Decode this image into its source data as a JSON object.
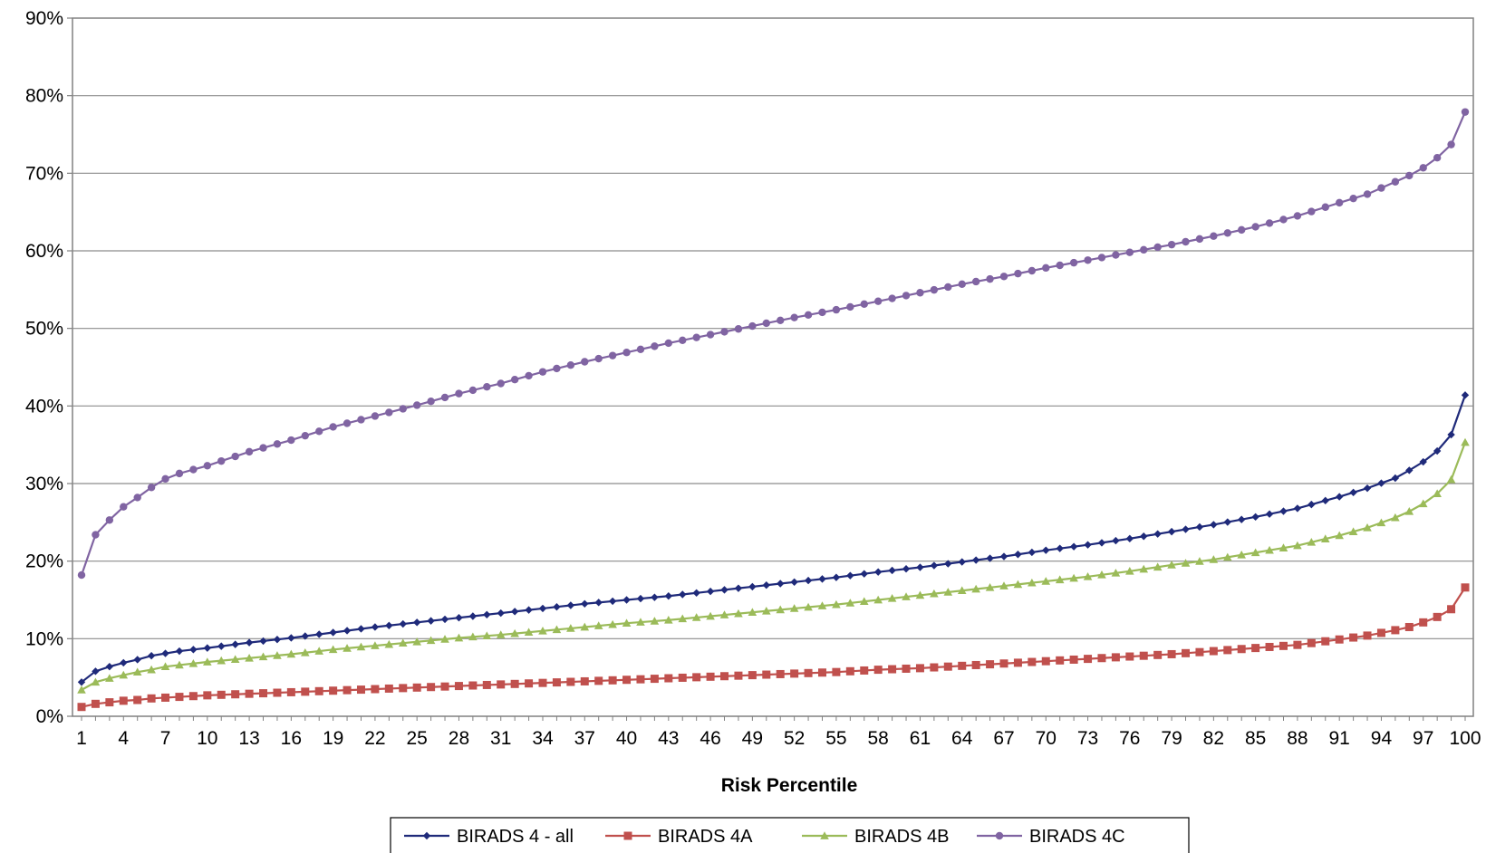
{
  "chart_data": {
    "type": "line",
    "title": "",
    "xlabel": "Risk Percentile",
    "ylabel": "",
    "xlim": [
      1,
      100
    ],
    "ylim": [
      0,
      0.9
    ],
    "y_tick_labels": [
      "0%",
      "10%",
      "20%",
      "30%",
      "40%",
      "50%",
      "60%",
      "70%",
      "80%",
      "90%"
    ],
    "x_tick_labels": [
      "1",
      "4",
      "7",
      "10",
      "13",
      "16",
      "19",
      "22",
      "25",
      "28",
      "31",
      "34",
      "37",
      "40",
      "43",
      "46",
      "49",
      "52",
      "55",
      "58",
      "61",
      "64",
      "67",
      "70",
      "73",
      "76",
      "79",
      "82",
      "85",
      "88",
      "91",
      "94",
      "97",
      "100"
    ],
    "grid": "horizontal",
    "legend_position": "bottom",
    "series": [
      {
        "name": "BIRADS 4 - all",
        "color": "#1f2a7a",
        "marker": "diamond",
        "anchors": [
          [
            1,
            0.044
          ],
          [
            2,
            0.058
          ],
          [
            3,
            0.064
          ],
          [
            4,
            0.069
          ],
          [
            5,
            0.073
          ],
          [
            6,
            0.078
          ],
          [
            7,
            0.081
          ],
          [
            8,
            0.084
          ],
          [
            10,
            0.088
          ],
          [
            13,
            0.095
          ],
          [
            16,
            0.101
          ],
          [
            19,
            0.108
          ],
          [
            22,
            0.115
          ],
          [
            25,
            0.121
          ],
          [
            28,
            0.127
          ],
          [
            31,
            0.133
          ],
          [
            34,
            0.139
          ],
          [
            37,
            0.145
          ],
          [
            40,
            0.15
          ],
          [
            43,
            0.155
          ],
          [
            46,
            0.161
          ],
          [
            49,
            0.167
          ],
          [
            52,
            0.173
          ],
          [
            55,
            0.179
          ],
          [
            58,
            0.186
          ],
          [
            61,
            0.192
          ],
          [
            64,
            0.199
          ],
          [
            67,
            0.206
          ],
          [
            70,
            0.214
          ],
          [
            73,
            0.221
          ],
          [
            76,
            0.229
          ],
          [
            79,
            0.238
          ],
          [
            82,
            0.247
          ],
          [
            85,
            0.257
          ],
          [
            88,
            0.268
          ],
          [
            91,
            0.283
          ],
          [
            93,
            0.294
          ],
          [
            95,
            0.307
          ],
          [
            96,
            0.317
          ],
          [
            97,
            0.328
          ],
          [
            98,
            0.342
          ],
          [
            99,
            0.363
          ],
          [
            100,
            0.414
          ]
        ]
      },
      {
        "name": "BIRADS 4A",
        "color": "#c0504d",
        "marker": "square",
        "anchors": [
          [
            1,
            0.012
          ],
          [
            2,
            0.016
          ],
          [
            3,
            0.018
          ],
          [
            4,
            0.02
          ],
          [
            5,
            0.021
          ],
          [
            6,
            0.023
          ],
          [
            7,
            0.024
          ],
          [
            10,
            0.027
          ],
          [
            13,
            0.029
          ],
          [
            16,
            0.031
          ],
          [
            19,
            0.033
          ],
          [
            22,
            0.035
          ],
          [
            25,
            0.037
          ],
          [
            28,
            0.039
          ],
          [
            31,
            0.041
          ],
          [
            34,
            0.043
          ],
          [
            37,
            0.045
          ],
          [
            40,
            0.047
          ],
          [
            43,
            0.049
          ],
          [
            46,
            0.051
          ],
          [
            49,
            0.053
          ],
          [
            52,
            0.055
          ],
          [
            55,
            0.057
          ],
          [
            58,
            0.06
          ],
          [
            61,
            0.062
          ],
          [
            64,
            0.065
          ],
          [
            67,
            0.068
          ],
          [
            70,
            0.071
          ],
          [
            73,
            0.074
          ],
          [
            76,
            0.077
          ],
          [
            79,
            0.08
          ],
          [
            82,
            0.084
          ],
          [
            85,
            0.088
          ],
          [
            88,
            0.092
          ],
          [
            91,
            0.099
          ],
          [
            93,
            0.104
          ],
          [
            95,
            0.111
          ],
          [
            96,
            0.115
          ],
          [
            97,
            0.121
          ],
          [
            98,
            0.128
          ],
          [
            99,
            0.138
          ],
          [
            100,
            0.166
          ]
        ]
      },
      {
        "name": "BIRADS 4B",
        "color": "#9bbb59",
        "marker": "triangle",
        "anchors": [
          [
            1,
            0.034
          ],
          [
            2,
            0.044
          ],
          [
            3,
            0.049
          ],
          [
            4,
            0.053
          ],
          [
            5,
            0.057
          ],
          [
            6,
            0.06
          ],
          [
            7,
            0.064
          ],
          [
            10,
            0.07
          ],
          [
            13,
            0.075
          ],
          [
            16,
            0.08
          ],
          [
            19,
            0.086
          ],
          [
            22,
            0.091
          ],
          [
            25,
            0.096
          ],
          [
            28,
            0.101
          ],
          [
            31,
            0.105
          ],
          [
            34,
            0.11
          ],
          [
            37,
            0.115
          ],
          [
            40,
            0.12
          ],
          [
            43,
            0.124
          ],
          [
            46,
            0.129
          ],
          [
            49,
            0.134
          ],
          [
            52,
            0.139
          ],
          [
            55,
            0.144
          ],
          [
            58,
            0.15
          ],
          [
            61,
            0.156
          ],
          [
            64,
            0.162
          ],
          [
            67,
            0.168
          ],
          [
            70,
            0.174
          ],
          [
            73,
            0.18
          ],
          [
            76,
            0.187
          ],
          [
            79,
            0.195
          ],
          [
            82,
            0.202
          ],
          [
            85,
            0.211
          ],
          [
            88,
            0.22
          ],
          [
            91,
            0.233
          ],
          [
            93,
            0.243
          ],
          [
            95,
            0.256
          ],
          [
            96,
            0.264
          ],
          [
            97,
            0.274
          ],
          [
            98,
            0.287
          ],
          [
            99,
            0.305
          ],
          [
            100,
            0.353
          ]
        ]
      },
      {
        "name": "BIRADS 4C",
        "color": "#8064a2",
        "marker": "circle",
        "anchors": [
          [
            1,
            0.182
          ],
          [
            2,
            0.234
          ],
          [
            3,
            0.253
          ],
          [
            4,
            0.27
          ],
          [
            5,
            0.282
          ],
          [
            6,
            0.295
          ],
          [
            7,
            0.306
          ],
          [
            8,
            0.313
          ],
          [
            10,
            0.323
          ],
          [
            13,
            0.341
          ],
          [
            16,
            0.356
          ],
          [
            19,
            0.373
          ],
          [
            22,
            0.387
          ],
          [
            25,
            0.401
          ],
          [
            28,
            0.416
          ],
          [
            31,
            0.429
          ],
          [
            34,
            0.444
          ],
          [
            37,
            0.457
          ],
          [
            40,
            0.469
          ],
          [
            43,
            0.481
          ],
          [
            46,
            0.492
          ],
          [
            49,
            0.503
          ],
          [
            52,
            0.514
          ],
          [
            55,
            0.524
          ],
          [
            58,
            0.535
          ],
          [
            61,
            0.546
          ],
          [
            64,
            0.557
          ],
          [
            67,
            0.567
          ],
          [
            70,
            0.578
          ],
          [
            73,
            0.588
          ],
          [
            76,
            0.598
          ],
          [
            79,
            0.608
          ],
          [
            82,
            0.619
          ],
          [
            85,
            0.631
          ],
          [
            88,
            0.645
          ],
          [
            91,
            0.662
          ],
          [
            93,
            0.673
          ],
          [
            95,
            0.689
          ],
          [
            96,
            0.697
          ],
          [
            97,
            0.707
          ],
          [
            98,
            0.72
          ],
          [
            99,
            0.737
          ],
          [
            100,
            0.779
          ]
        ]
      }
    ]
  }
}
